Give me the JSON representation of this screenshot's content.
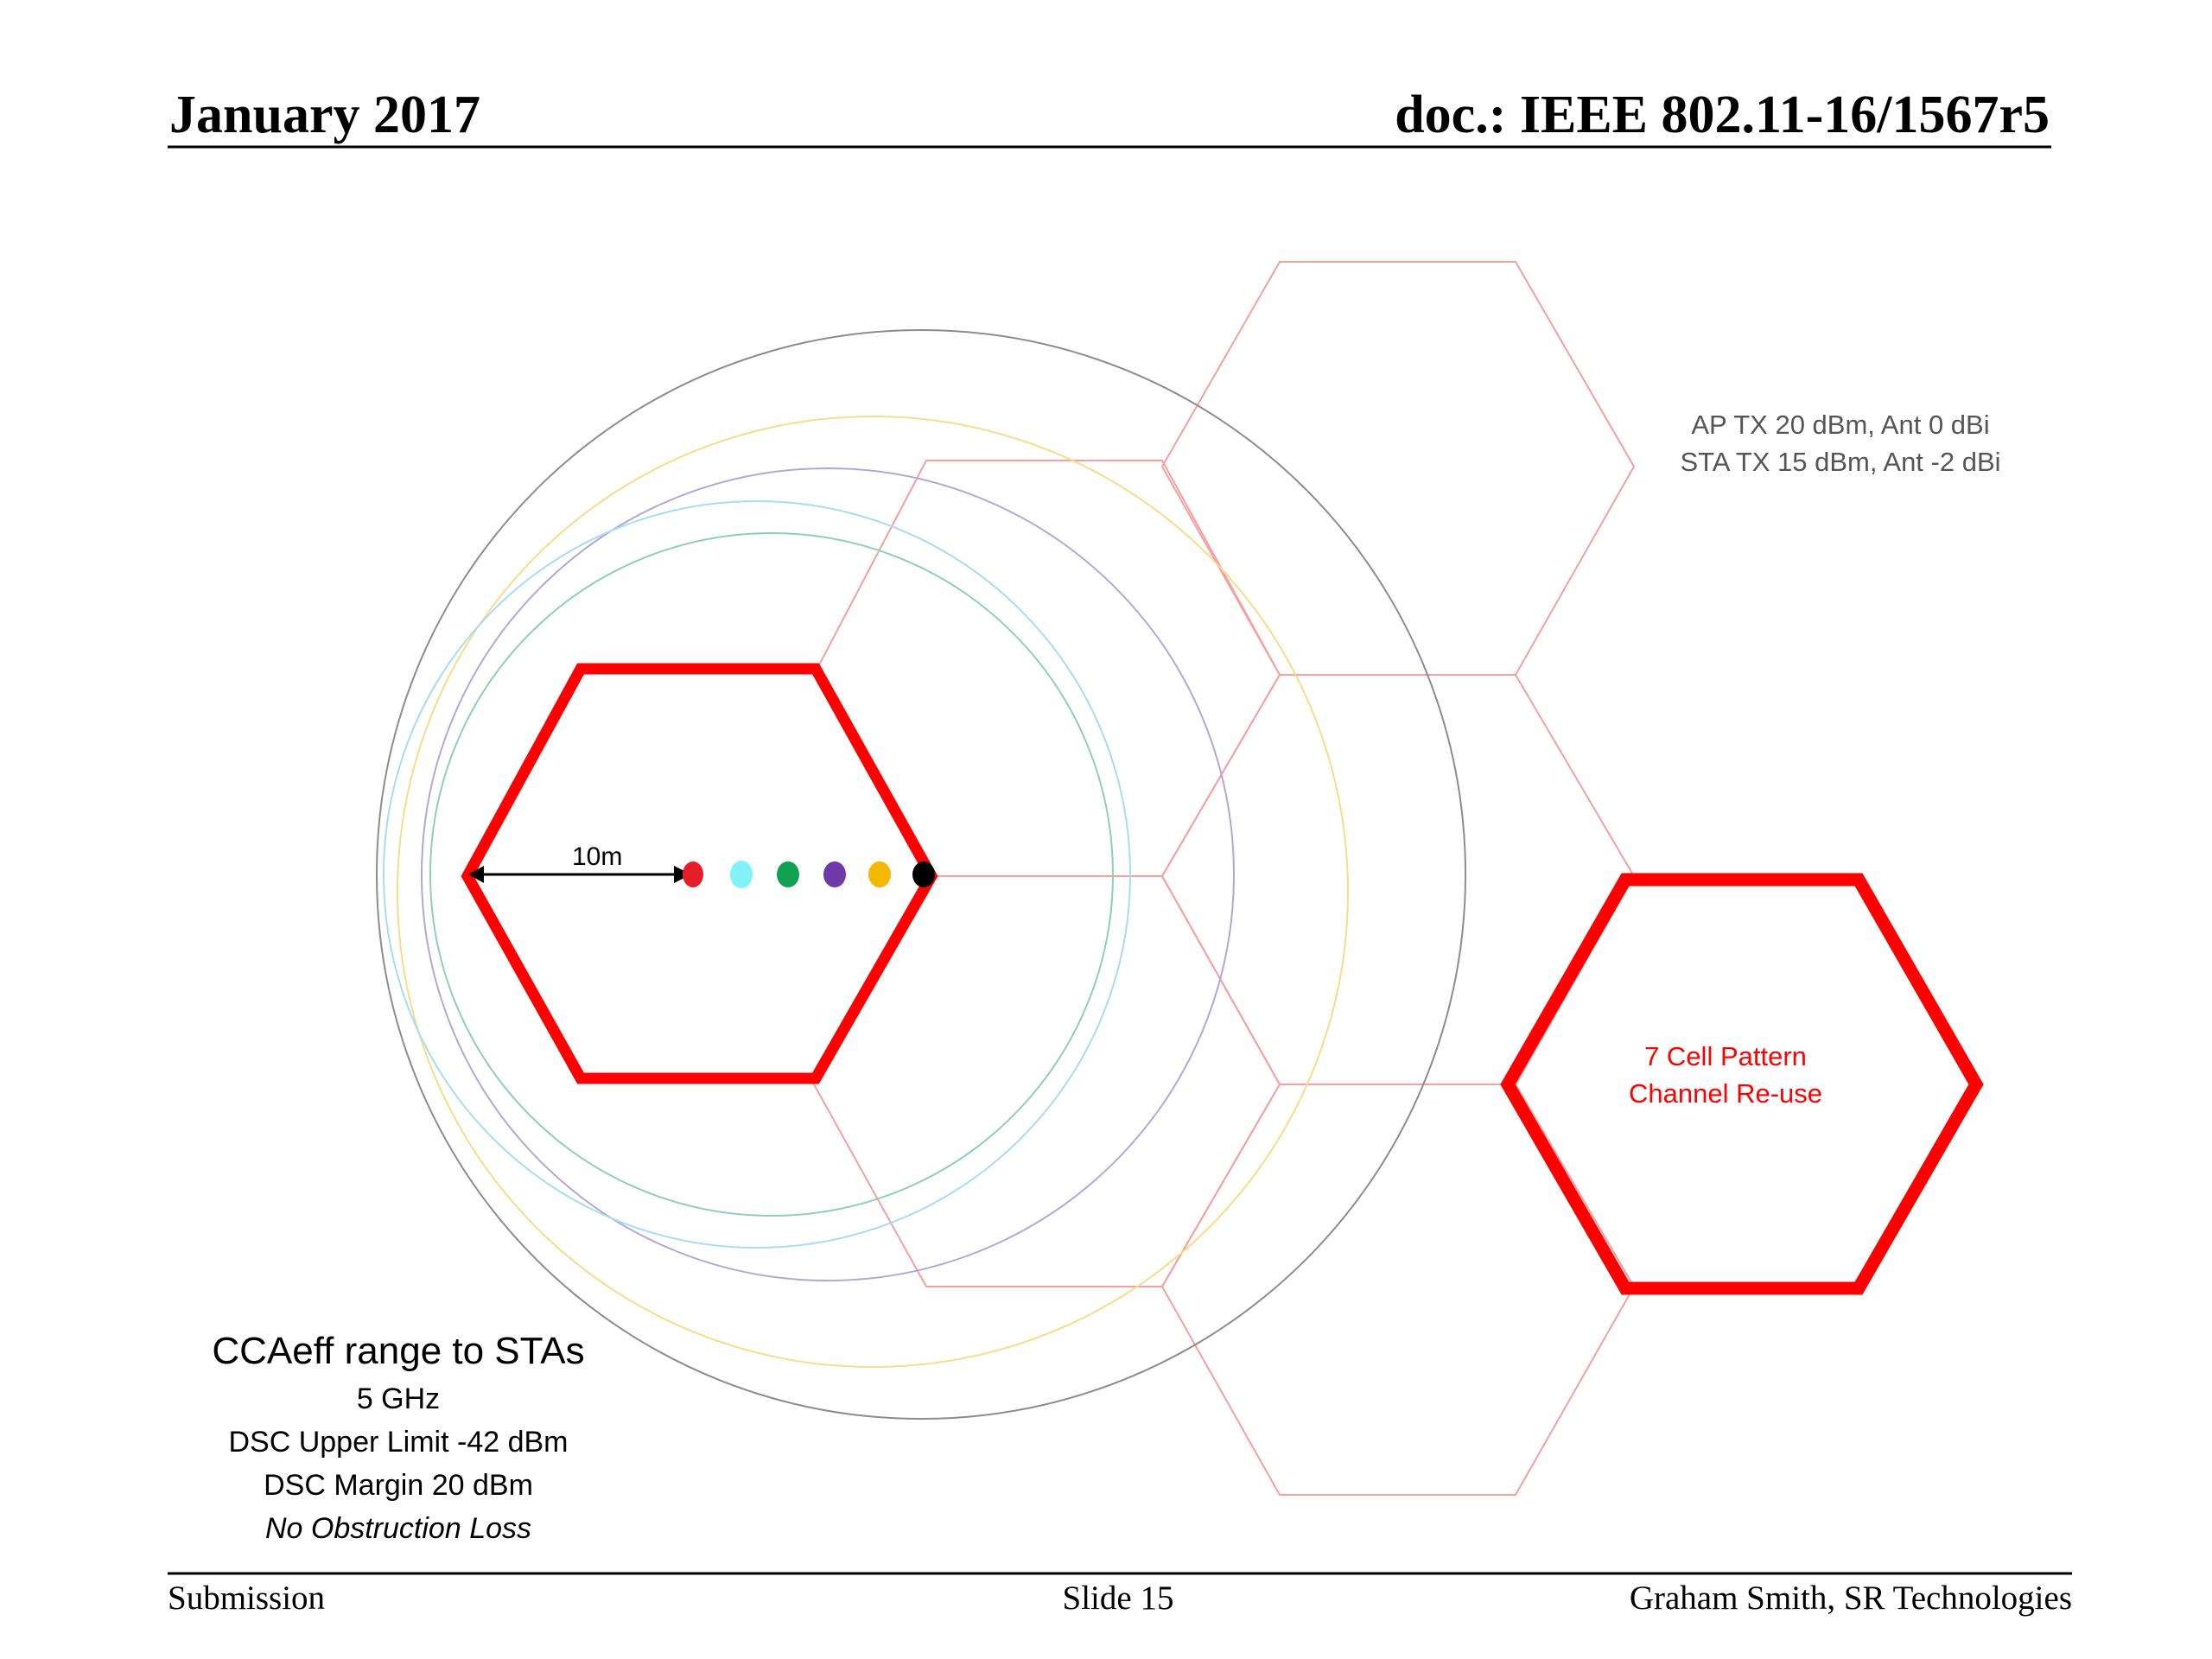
{
  "header": {
    "date": "January 2017",
    "doc_id": "doc.: IEEE 802.11-16/1567r5"
  },
  "footer": {
    "left": "Submission",
    "center": "Slide 15",
    "right": "Graham Smith, SR Technologies"
  },
  "tx_info": {
    "line1": "AP TX 20 dBm, Ant 0 dBi",
    "line2": "STA TX 15 dBm, Ant -2 dBi"
  },
  "distance_label": "10m",
  "reuse_label": {
    "line1": "7 Cell Pattern",
    "line2": "Channel Re-use"
  },
  "caption": {
    "title": "CCAeff range to STAs",
    "band": "5 GHz",
    "upper_limit": "DSC Upper Limit -42 dBm",
    "margin": "DSC Margin 20 dBm",
    "note": "No Obstruction Loss"
  },
  "colors": {
    "cell_red": "#ff0000",
    "grid_red": "#f4a0a0",
    "range_red": "#e61e2a",
    "range_cyan": "#80f2f8",
    "range_green": "#10a050",
    "range_purple": "#6e3aa8",
    "range_orange": "#f5b800",
    "range_black": "#000000"
  }
}
